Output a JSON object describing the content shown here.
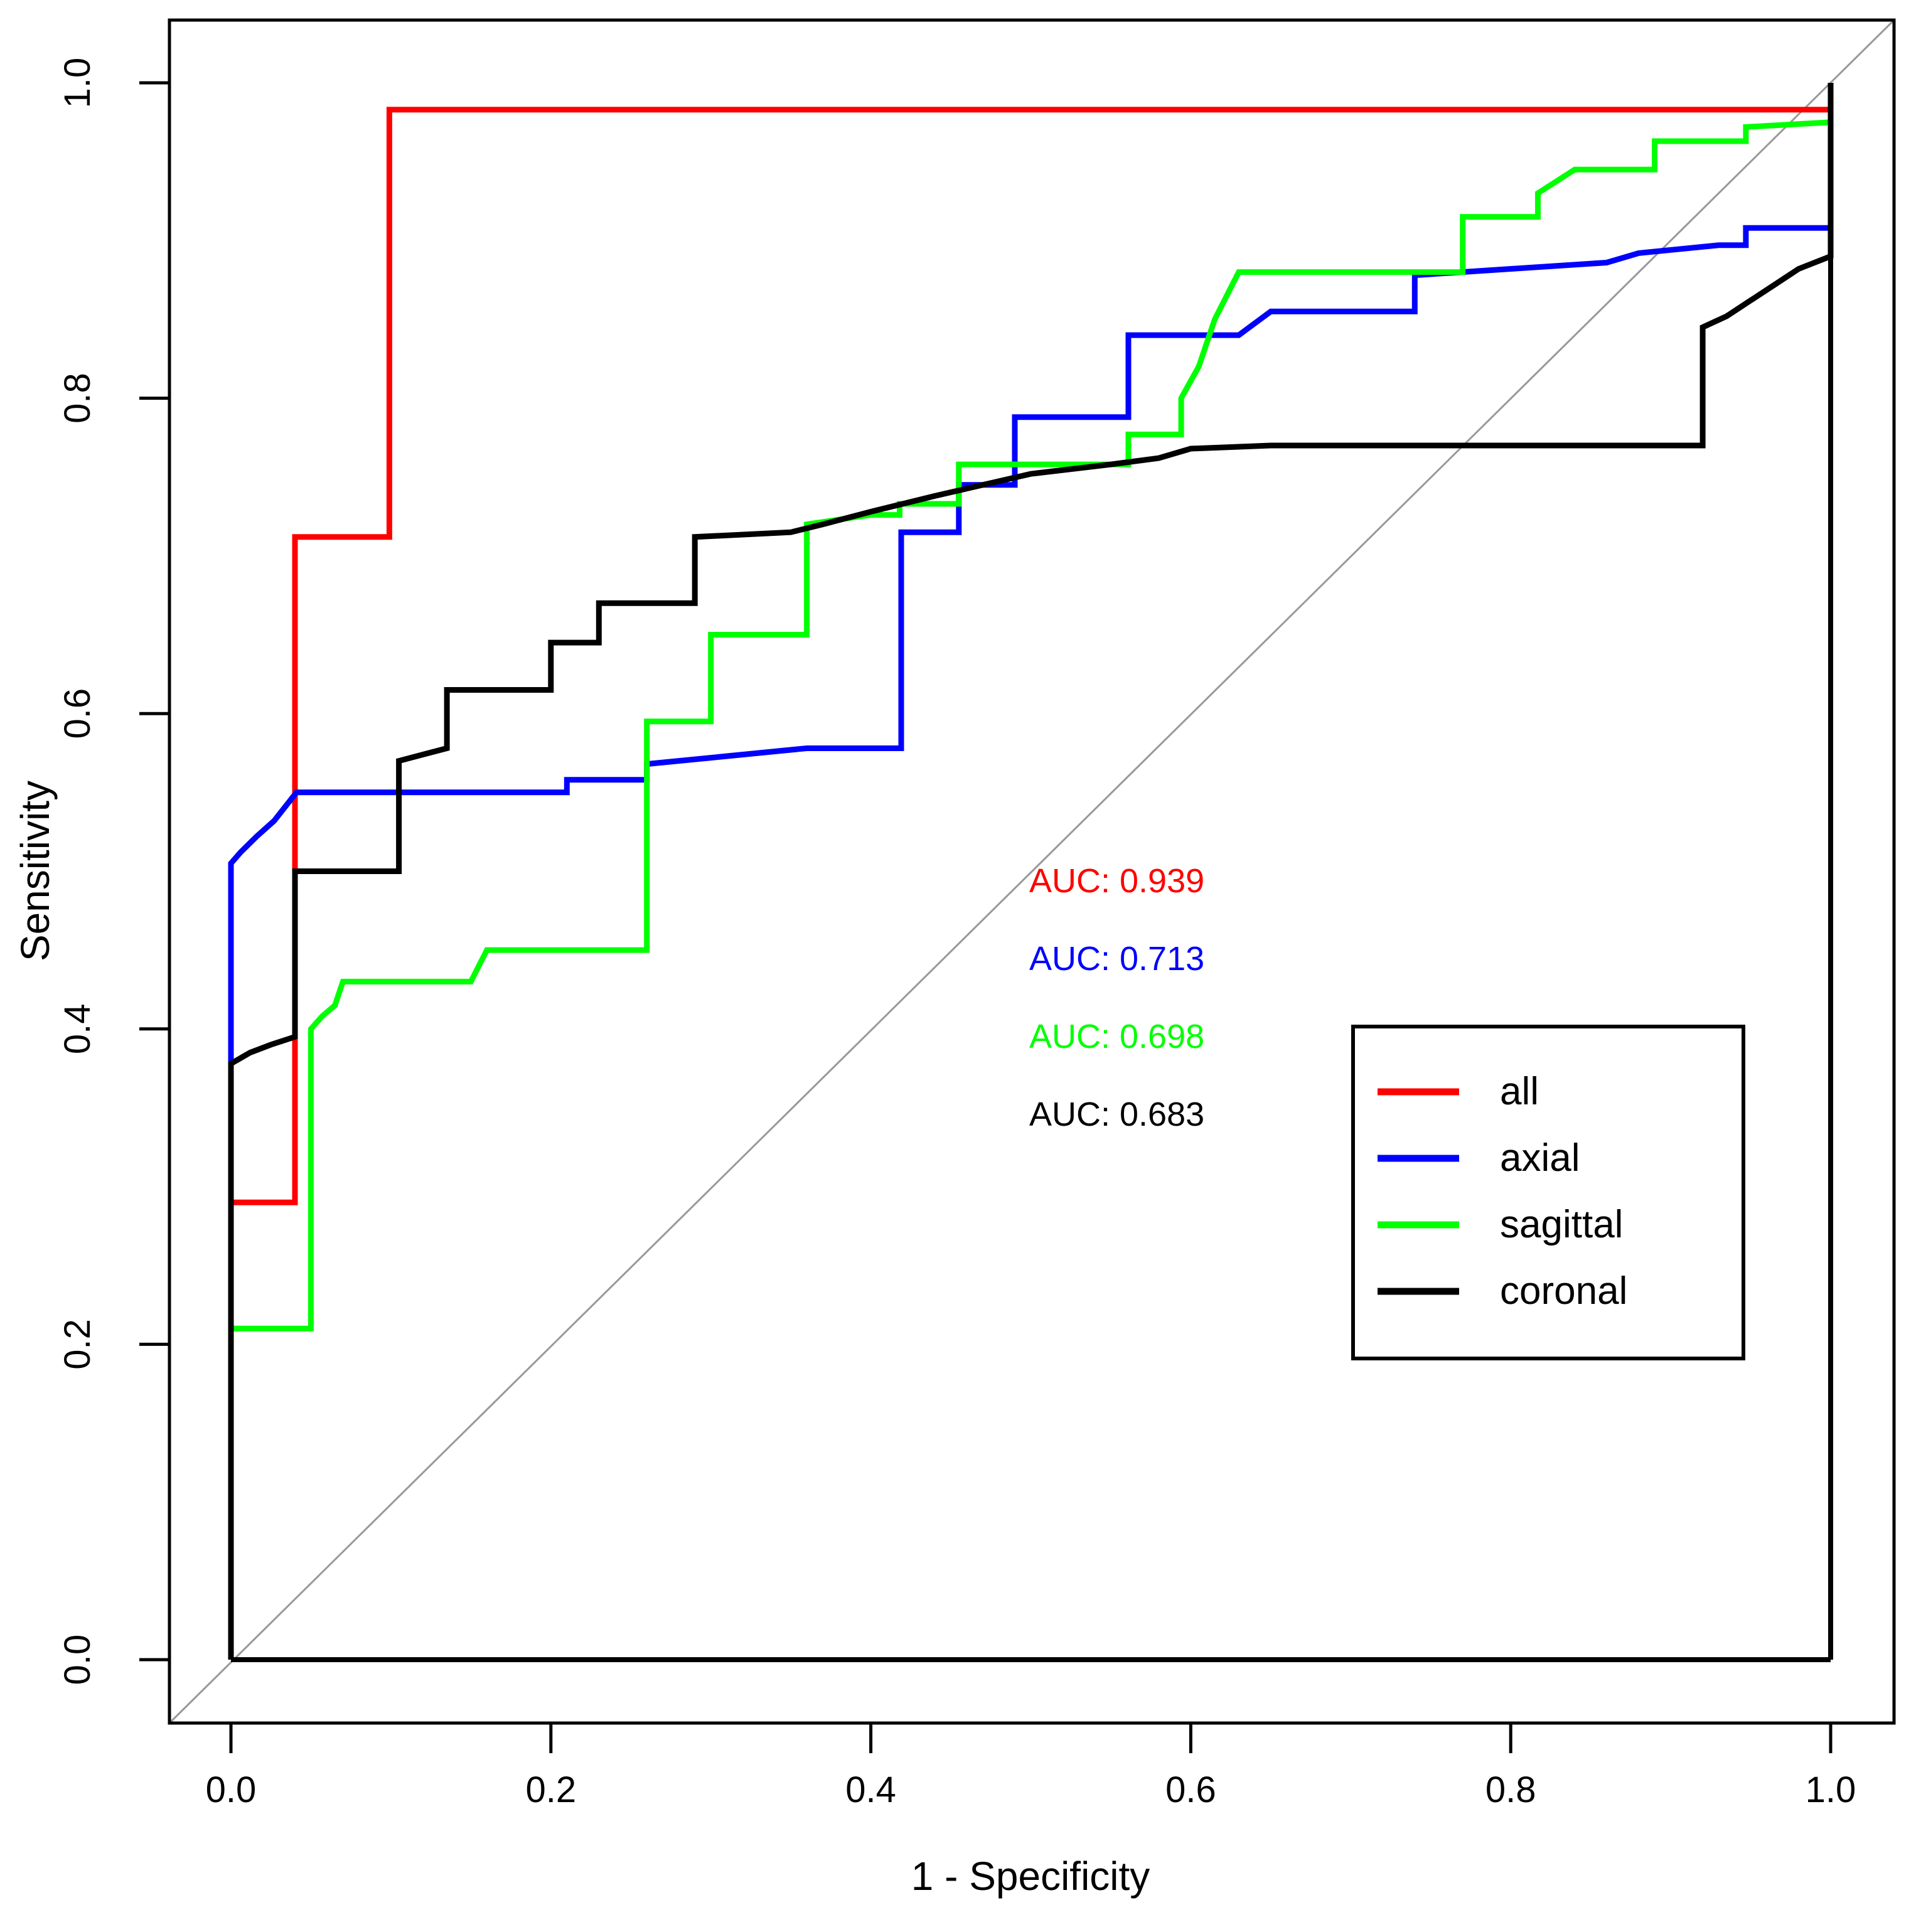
{
  "chart_data": {
    "type": "line",
    "subtype": "roc-step-curves",
    "title": "",
    "xlabel": "1 - Specificity",
    "ylabel": "Sensitivity",
    "xlim": [
      0,
      1
    ],
    "ylim": [
      0,
      1
    ],
    "x_ticks": [
      "0.0",
      "0.2",
      "0.4",
      "0.6",
      "0.8",
      "1.0"
    ],
    "y_ticks": [
      "0.0",
      "0.2",
      "0.4",
      "0.6",
      "0.8",
      "1.0"
    ],
    "x_tick_values": [
      0,
      0.2,
      0.4,
      0.6,
      0.8,
      1.0
    ],
    "y_tick_values": [
      0,
      0.2,
      0.4,
      0.6,
      0.8,
      1.0
    ],
    "grid": false,
    "diagonal_reference_line": {
      "from": [
        0,
        0
      ],
      "to": [
        1,
        1
      ],
      "color": "#999999"
    },
    "frame_color": "#000000",
    "legend_position": "bottom-right-inside",
    "series": [
      {
        "name": "all",
        "color": "#FF0000",
        "auc": 0.939,
        "points": [
          [
            0,
            0
          ],
          [
            0,
            0.29
          ],
          [
            0.04,
            0.29
          ],
          [
            0.04,
            0.712
          ],
          [
            0.099,
            0.712
          ],
          [
            0.099,
            0.983
          ],
          [
            1,
            0.983
          ],
          [
            1,
            1
          ]
        ]
      },
      {
        "name": "axial",
        "color": "#0000FF",
        "auc": 0.713,
        "points": [
          [
            0,
            0
          ],
          [
            0,
            0.505
          ],
          [
            0.006,
            0.512
          ],
          [
            0.016,
            0.522
          ],
          [
            0.027,
            0.532
          ],
          [
            0.041,
            0.55
          ],
          [
            0.21,
            0.55
          ],
          [
            0.21,
            0.558
          ],
          [
            0.26,
            0.558
          ],
          [
            0.26,
            0.568
          ],
          [
            0.3,
            0.572
          ],
          [
            0.34,
            0.576
          ],
          [
            0.36,
            0.578
          ],
          [
            0.419,
            0.578
          ],
          [
            0.419,
            0.715
          ],
          [
            0.455,
            0.715
          ],
          [
            0.455,
            0.745
          ],
          [
            0.49,
            0.745
          ],
          [
            0.49,
            0.788
          ],
          [
            0.561,
            0.788
          ],
          [
            0.561,
            0.84
          ],
          [
            0.63,
            0.84
          ],
          [
            0.65,
            0.855
          ],
          [
            0.74,
            0.855
          ],
          [
            0.74,
            0.878
          ],
          [
            0.8,
            0.882
          ],
          [
            0.86,
            0.886
          ],
          [
            0.88,
            0.892
          ],
          [
            0.93,
            0.897
          ],
          [
            0.947,
            0.897
          ],
          [
            0.947,
            0.908
          ],
          [
            1,
            0.908
          ],
          [
            1,
            1
          ]
        ]
      },
      {
        "name": "sagittal",
        "color": "#00FF00",
        "auc": 0.698,
        "points": [
          [
            0,
            0
          ],
          [
            0,
            0.21
          ],
          [
            0.05,
            0.21
          ],
          [
            0.05,
            0.4
          ],
          [
            0.057,
            0.408
          ],
          [
            0.065,
            0.415
          ],
          [
            0.07,
            0.43
          ],
          [
            0.15,
            0.43
          ],
          [
            0.16,
            0.45
          ],
          [
            0.26,
            0.45
          ],
          [
            0.26,
            0.595
          ],
          [
            0.3,
            0.595
          ],
          [
            0.3,
            0.65
          ],
          [
            0.36,
            0.65
          ],
          [
            0.36,
            0.72
          ],
          [
            0.4,
            0.726
          ],
          [
            0.418,
            0.726
          ],
          [
            0.418,
            0.733
          ],
          [
            0.455,
            0.733
          ],
          [
            0.455,
            0.758
          ],
          [
            0.561,
            0.758
          ],
          [
            0.561,
            0.777
          ],
          [
            0.594,
            0.777
          ],
          [
            0.594,
            0.8
          ],
          [
            0.605,
            0.82
          ],
          [
            0.615,
            0.85
          ],
          [
            0.625,
            0.87
          ],
          [
            0.63,
            0.88
          ],
          [
            0.77,
            0.88
          ],
          [
            0.77,
            0.915
          ],
          [
            0.817,
            0.915
          ],
          [
            0.817,
            0.93
          ],
          [
            0.84,
            0.945
          ],
          [
            0.89,
            0.945
          ],
          [
            0.89,
            0.963
          ],
          [
            0.947,
            0.963
          ],
          [
            0.947,
            0.972
          ],
          [
            1,
            0.975
          ],
          [
            1,
            1
          ]
        ]
      },
      {
        "name": "coronal",
        "color": "#000000",
        "auc": 0.683,
        "points": [
          [
            0,
            0
          ],
          [
            0,
            0.378
          ],
          [
            0.012,
            0.385
          ],
          [
            0.025,
            0.39
          ],
          [
            0.04,
            0.395
          ],
          [
            0.04,
            0.5
          ],
          [
            0.105,
            0.5
          ],
          [
            0.105,
            0.57
          ],
          [
            0.12,
            0.574
          ],
          [
            0.135,
            0.578
          ],
          [
            0.135,
            0.615
          ],
          [
            0.2,
            0.615
          ],
          [
            0.2,
            0.645
          ],
          [
            0.23,
            0.645
          ],
          [
            0.23,
            0.67
          ],
          [
            0.29,
            0.67
          ],
          [
            0.29,
            0.712
          ],
          [
            0.35,
            0.715
          ],
          [
            0.37,
            0.72
          ],
          [
            0.4,
            0.728
          ],
          [
            0.44,
            0.738
          ],
          [
            0.47,
            0.745
          ],
          [
            0.5,
            0.752
          ],
          [
            0.55,
            0.758
          ],
          [
            0.58,
            0.762
          ],
          [
            0.6,
            0.768
          ],
          [
            0.65,
            0.77
          ],
          [
            0.92,
            0.77
          ],
          [
            0.92,
            0.845
          ],
          [
            0.935,
            0.852
          ],
          [
            0.95,
            0.862
          ],
          [
            0.965,
            0.872
          ],
          [
            0.98,
            0.882
          ],
          [
            1,
            0.89
          ],
          [
            1,
            1
          ]
        ]
      }
    ],
    "auc_annotations": [
      {
        "text": "AUC: 0.939",
        "color": "#FF0000"
      },
      {
        "text": "AUC: 0.713",
        "color": "#0000FF"
      },
      {
        "text": "AUC: 0.698",
        "color": "#00FF00"
      },
      {
        "text": "AUC: 0.683",
        "color": "#000000"
      }
    ],
    "legend": {
      "entries": [
        {
          "label": "all",
          "color": "#FF0000"
        },
        {
          "label": "axial",
          "color": "#0000FF"
        },
        {
          "label": "sagittal",
          "color": "#00FF00"
        },
        {
          "label": "coronal",
          "color": "#000000"
        }
      ]
    }
  }
}
